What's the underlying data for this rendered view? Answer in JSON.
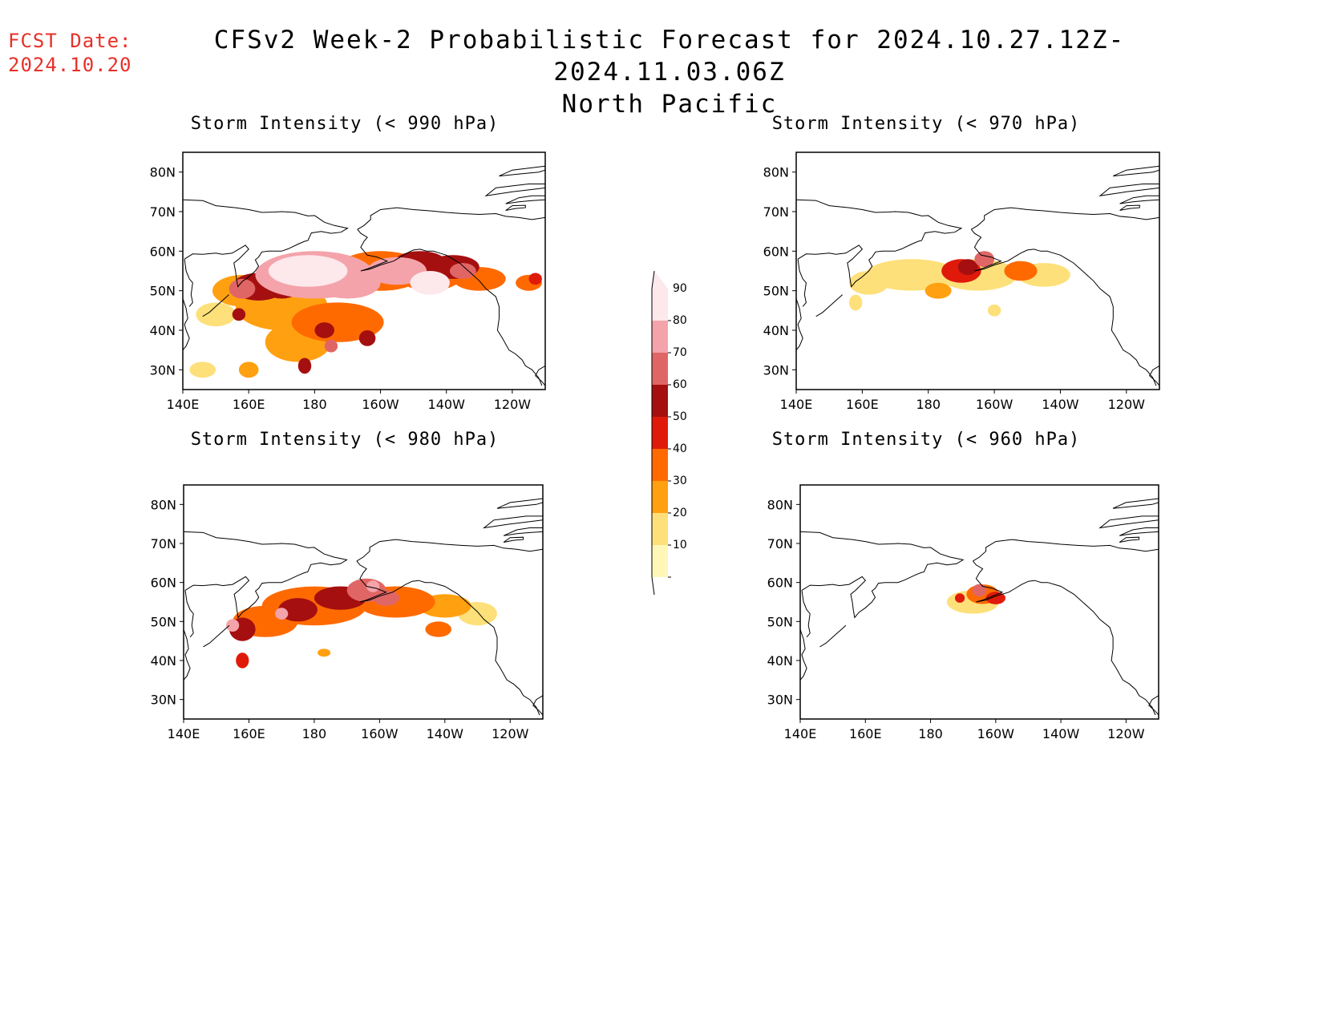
{
  "header": {
    "fcst_label": "FCST Date:",
    "fcst_date": "2024.10.20",
    "title": "CFSv2 Week-2 Probabilistic Forecast for 2024.10.27.12Z-2024.11.03.06Z",
    "subtitle": "North Pacific"
  },
  "panels": [
    {
      "title": "Storm Intensity (< 990 hPa)"
    },
    {
      "title": "Storm Intensity (< 970 hPa)"
    },
    {
      "title": "Storm Intensity (< 980 hPa)"
    },
    {
      "title": "Storm Intensity (< 960 hPa)"
    }
  ],
  "axes": {
    "lon_ticks": [
      "140E",
      "160E",
      "180",
      "160W",
      "140W",
      "120W"
    ],
    "lat_ticks": [
      "80N",
      "70N",
      "60N",
      "50N",
      "40N",
      "30N"
    ]
  },
  "colorbar": {
    "labels": [
      "90",
      "80",
      "70",
      "60",
      "50",
      "40",
      "30",
      "20",
      "10"
    ],
    "colors": [
      "#fde8ec",
      "#f4a3aa",
      "#e06666",
      "#a50f0f",
      "#e01a0a",
      "#ff6a00",
      "#ffa010",
      "#fde07a",
      "#fff7b8"
    ]
  }
}
